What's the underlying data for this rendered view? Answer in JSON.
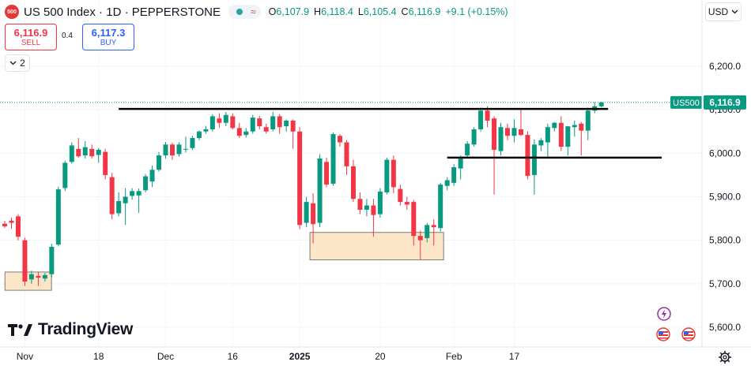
{
  "header": {
    "symbol_badge": "500",
    "title": "US 500 Index · 1D · PEPPERSTONE",
    "open_label": "O",
    "open": "6,107.9",
    "high_label": "H",
    "high": "6,118.4",
    "low_label": "L",
    "low": "6,105.4",
    "close_label": "C",
    "close": "6,116.9",
    "change": "+9.1 (+0.15%)"
  },
  "trade": {
    "sell_price": "6,116.9",
    "sell_label": "SELL",
    "spread": "0.4",
    "buy_price": "6,117.3",
    "buy_label": "BUY"
  },
  "indicators": {
    "layers_count": "2",
    "layers_icon": "chevron-down-icon"
  },
  "currency": {
    "label": "USD",
    "icon": "chevron-down-icon"
  },
  "logo": {
    "text": "TradingView"
  },
  "colors": {
    "up": "#089981",
    "down": "#f23645",
    "box_fill": "#fde6c8",
    "box_stroke": "#7a7a7a",
    "price_tag": "#089981"
  },
  "chart_data": {
    "type": "candlestick",
    "title": "US 500 Index · 1D · PEPPERSTONE",
    "y_axis": {
      "ticks": [
        5600,
        5700,
        5800,
        5900,
        6000,
        6100,
        6200
      ],
      "tick_labels": [
        "5,600.0",
        "5,700.0",
        "5,800.0",
        "5,900.0",
        "6,000.0",
        "6,100.0",
        "6,200.0"
      ]
    },
    "x_axis": {
      "tick_labels": [
        "Nov",
        "18",
        "Dec",
        "16",
        "2025",
        "20",
        "Feb",
        "17"
      ]
    },
    "last_price": {
      "symbol": "US500",
      "value": 6116.9,
      "label": "6,116.9"
    },
    "candles": [
      {
        "date": "Oct 29",
        "o": 5838,
        "h": 5845,
        "l": 5828,
        "c": 5832
      },
      {
        "date": "Oct 30",
        "o": 5845,
        "h": 5852,
        "l": 5826,
        "c": 5840
      },
      {
        "date": "Oct 31",
        "o": 5855,
        "h": 5860,
        "l": 5800,
        "c": 5808
      },
      {
        "date": "Nov 1",
        "o": 5800,
        "h": 5806,
        "l": 5695,
        "c": 5705
      },
      {
        "date": "Nov 4",
        "o": 5710,
        "h": 5730,
        "l": 5700,
        "c": 5722
      },
      {
        "date": "Nov 5",
        "o": 5718,
        "h": 5728,
        "l": 5695,
        "c": 5714
      },
      {
        "date": "Nov 6",
        "o": 5712,
        "h": 5725,
        "l": 5705,
        "c": 5720
      },
      {
        "date": "Nov 7",
        "o": 5722,
        "h": 5792,
        "l": 5715,
        "c": 5785
      },
      {
        "date": "Nov 8",
        "o": 5790,
        "h": 5923,
        "l": 5786,
        "c": 5917
      },
      {
        "date": "Nov 11",
        "o": 5920,
        "h": 5983,
        "l": 5913,
        "c": 5978
      },
      {
        "date": "Nov 12",
        "o": 5980,
        "h": 6025,
        "l": 5976,
        "c": 6018
      },
      {
        "date": "Nov 13",
        "o": 6010,
        "h": 6035,
        "l": 5990,
        "c": 5993
      },
      {
        "date": "Nov 14",
        "o": 5995,
        "h": 6028,
        "l": 5988,
        "c": 6014
      },
      {
        "date": "Nov 15",
        "o": 6010,
        "h": 6020,
        "l": 5988,
        "c": 5993
      },
      {
        "date": "Nov 18",
        "o": 5996,
        "h": 6012,
        "l": 5978,
        "c": 6008
      },
      {
        "date": "Nov 19",
        "o": 6003,
        "h": 6010,
        "l": 5940,
        "c": 5950
      },
      {
        "date": "Nov 20",
        "o": 5945,
        "h": 5955,
        "l": 5848,
        "c": 5860
      },
      {
        "date": "Nov 21",
        "o": 5862,
        "h": 5910,
        "l": 5855,
        "c": 5890
      },
      {
        "date": "Nov 22",
        "o": 5885,
        "h": 5920,
        "l": 5835,
        "c": 5900
      },
      {
        "date": "Nov 25",
        "o": 5902,
        "h": 5920,
        "l": 5893,
        "c": 5913
      },
      {
        "date": "Nov 26",
        "o": 5903,
        "h": 5919,
        "l": 5863,
        "c": 5913
      },
      {
        "date": "Nov 27",
        "o": 5915,
        "h": 5952,
        "l": 5910,
        "c": 5947
      },
      {
        "date": "Nov 29",
        "o": 5935,
        "h": 5972,
        "l": 5922,
        "c": 5962
      },
      {
        "date": "Dec 2",
        "o": 5962,
        "h": 6003,
        "l": 5958,
        "c": 5995
      },
      {
        "date": "Dec 3",
        "o": 5995,
        "h": 6026,
        "l": 5988,
        "c": 6020
      },
      {
        "date": "Dec 4",
        "o": 6020,
        "h": 6024,
        "l": 5985,
        "c": 5995
      },
      {
        "date": "Dec 5",
        "o": 5998,
        "h": 6025,
        "l": 5992,
        "c": 6020
      },
      {
        "date": "Dec 6",
        "o": 6010,
        "h": 6038,
        "l": 6002,
        "c": 6010
      },
      {
        "date": "Dec 9",
        "o": 6012,
        "h": 6040,
        "l": 6008,
        "c": 6035
      },
      {
        "date": "Dec 10",
        "o": 6035,
        "h": 6052,
        "l": 6030,
        "c": 6050
      },
      {
        "date": "Dec 11",
        "o": 6050,
        "h": 6063,
        "l": 6045,
        "c": 6055
      },
      {
        "date": "Dec 12",
        "o": 6055,
        "h": 6090,
        "l": 6050,
        "c": 6085
      },
      {
        "date": "Dec 13",
        "o": 6080,
        "h": 6092,
        "l": 6058,
        "c": 6070
      },
      {
        "date": "Dec 16",
        "o": 6070,
        "h": 6095,
        "l": 6062,
        "c": 6088
      },
      {
        "date": "Dec 17",
        "o": 6085,
        "h": 6092,
        "l": 6055,
        "c": 6058
      },
      {
        "date": "Dec 18",
        "o": 6058,
        "h": 6070,
        "l": 6035,
        "c": 6040
      },
      {
        "date": "Dec 19",
        "o": 6042,
        "h": 6058,
        "l": 6036,
        "c": 6050
      },
      {
        "date": "Dec 20",
        "o": 6050,
        "h": 6088,
        "l": 6045,
        "c": 6082
      },
      {
        "date": "Dec 23",
        "o": 6080,
        "h": 6086,
        "l": 6055,
        "c": 6062
      },
      {
        "date": "Dec 24",
        "o": 6060,
        "h": 6068,
        "l": 6045,
        "c": 6050
      },
      {
        "date": "Dec 26",
        "o": 6055,
        "h": 6095,
        "l": 6050,
        "c": 6085
      },
      {
        "date": "Dec 27",
        "o": 6085,
        "h": 6090,
        "l": 6045,
        "c": 6060
      },
      {
        "date": "Dec 30",
        "o": 6062,
        "h": 6078,
        "l": 6050,
        "c": 6075
      },
      {
        "date": "Dec 31",
        "o": 6075,
        "h": 6078,
        "l": 6010,
        "c": 6050
      },
      {
        "date": "Jan 2",
        "o": 6050,
        "h": 6060,
        "l": 5825,
        "c": 5835
      },
      {
        "date": "Jan 3",
        "o": 5840,
        "h": 5900,
        "l": 5830,
        "c": 5888
      },
      {
        "date": "Jan 6",
        "o": 5885,
        "h": 5908,
        "l": 5793,
        "c": 5837
      },
      {
        "date": "Jan 7",
        "o": 5840,
        "h": 5998,
        "l": 5830,
        "c": 5988
      },
      {
        "date": "Jan 8",
        "o": 5980,
        "h": 5990,
        "l": 5922,
        "c": 5928
      },
      {
        "date": "Jan 9",
        "o": 5930,
        "h": 6048,
        "l": 5925,
        "c": 6044
      },
      {
        "date": "Jan 10",
        "o": 6040,
        "h": 6044,
        "l": 6015,
        "c": 6025
      },
      {
        "date": "Jan 13",
        "o": 6025,
        "h": 6030,
        "l": 5950,
        "c": 5970
      },
      {
        "date": "Jan 14",
        "o": 5970,
        "h": 5985,
        "l": 5888,
        "c": 5895
      },
      {
        "date": "Jan 15",
        "o": 5895,
        "h": 5910,
        "l": 5860,
        "c": 5870
      },
      {
        "date": "Jan 16",
        "o": 5870,
        "h": 5895,
        "l": 5855,
        "c": 5880
      },
      {
        "date": "Jan 17",
        "o": 5880,
        "h": 5895,
        "l": 5808,
        "c": 5858
      },
      {
        "date": "Jan 20",
        "o": 5860,
        "h": 5920,
        "l": 5852,
        "c": 5912
      },
      {
        "date": "Jan 21",
        "o": 5910,
        "h": 5990,
        "l": 5905,
        "c": 5985
      },
      {
        "date": "Jan 22",
        "o": 5985,
        "h": 5995,
        "l": 5908,
        "c": 5922
      },
      {
        "date": "Jan 23",
        "o": 5918,
        "h": 5928,
        "l": 5880,
        "c": 5888
      },
      {
        "date": "Jan 24",
        "o": 5888,
        "h": 5900,
        "l": 5870,
        "c": 5882
      },
      {
        "date": "Jan 27",
        "o": 5888,
        "h": 5893,
        "l": 5788,
        "c": 5810
      },
      {
        "date": "Jan 28",
        "o": 5810,
        "h": 5822,
        "l": 5756,
        "c": 5800
      },
      {
        "date": "Jan 29",
        "o": 5805,
        "h": 5840,
        "l": 5795,
        "c": 5835
      },
      {
        "date": "Jan 30",
        "o": 5835,
        "h": 5848,
        "l": 5788,
        "c": 5830
      },
      {
        "date": "Jan 31",
        "o": 5828,
        "h": 5932,
        "l": 5820,
        "c": 5928
      },
      {
        "date": "Feb 3",
        "o": 5925,
        "h": 5945,
        "l": 5915,
        "c": 5938
      },
      {
        "date": "Feb 4",
        "o": 5932,
        "h": 5975,
        "l": 5925,
        "c": 5968
      },
      {
        "date": "Feb 5",
        "o": 5965,
        "h": 5995,
        "l": 5940,
        "c": 5990
      },
      {
        "date": "Feb 6",
        "o": 5995,
        "h": 6028,
        "l": 5988,
        "c": 6022
      },
      {
        "date": "Feb 7",
        "o": 6020,
        "h": 6060,
        "l": 6015,
        "c": 6055
      },
      {
        "date": "Feb 10",
        "o": 6055,
        "h": 6105,
        "l": 6050,
        "c": 6098
      },
      {
        "date": "Feb 11",
        "o": 6098,
        "h": 6108,
        "l": 6060,
        "c": 6075
      },
      {
        "date": "Feb 12",
        "o": 6080,
        "h": 6085,
        "l": 5905,
        "c": 6008
      },
      {
        "date": "Feb 13",
        "o": 6005,
        "h": 6070,
        "l": 5995,
        "c": 6060
      },
      {
        "date": "Feb 14",
        "o": 6058,
        "h": 6068,
        "l": 6030,
        "c": 6040
      },
      {
        "date": "Feb 18",
        "o": 6040,
        "h": 6078,
        "l": 6025,
        "c": 6058
      },
      {
        "date": "Feb 19",
        "o": 6055,
        "h": 6102,
        "l": 6040,
        "c": 6042
      },
      {
        "date": "Feb 20",
        "o": 6042,
        "h": 6050,
        "l": 5940,
        "c": 5948
      },
      {
        "date": "Feb 21",
        "o": 5950,
        "h": 6032,
        "l": 5905,
        "c": 6020
      },
      {
        "date": "Feb 24",
        "o": 6018,
        "h": 6035,
        "l": 6005,
        "c": 6030
      },
      {
        "date": "Feb 25",
        "o": 6025,
        "h": 6068,
        "l": 5990,
        "c": 6060
      },
      {
        "date": "Feb 26",
        "o": 6058,
        "h": 6072,
        "l": 6050,
        "c": 6070
      },
      {
        "date": "Feb 27",
        "o": 6070,
        "h": 6085,
        "l": 6005,
        "c": 6015
      },
      {
        "date": "Feb 28",
        "o": 6015,
        "h": 6062,
        "l": 5995,
        "c": 6062
      },
      {
        "date": "Mar 3",
        "o": 6060,
        "h": 6075,
        "l": 6038,
        "c": 6065
      },
      {
        "date": "Mar 4",
        "o": 6068,
        "h": 6072,
        "l": 5995,
        "c": 6052
      },
      {
        "date": "Mar 5",
        "o": 6052,
        "h": 6105,
        "l": 6030,
        "c": 6098
      },
      {
        "date": "Mar 6",
        "o": 6098,
        "h": 6118,
        "l": 6092,
        "c": 6108
      },
      {
        "date": "Mar 7",
        "o": 6107.9,
        "h": 6118.4,
        "l": 6105.4,
        "c": 6116.9
      }
    ],
    "lines": [
      {
        "name": "resistance",
        "from_index": 17,
        "to_index": 90,
        "value": 6102
      },
      {
        "name": "support",
        "from_index": 66,
        "to_index": 98,
        "value": 5990
      }
    ],
    "zones": [
      {
        "name": "zone-nov",
        "from_index": 0.5,
        "to_index": 6.5,
        "low": 5685,
        "high": 5727
      },
      {
        "name": "zone-jan",
        "from_index": 46,
        "to_index": 65,
        "low": 5755,
        "high": 5818
      }
    ]
  }
}
